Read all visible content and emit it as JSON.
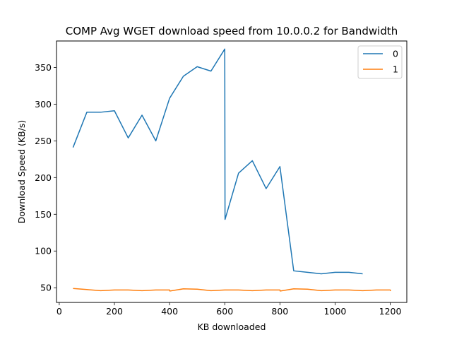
{
  "chart_data": {
    "type": "line",
    "title": "COMP Avg WGET download speed from 10.0.0.2 for Bandwidth",
    "xlabel": "KB downloaded",
    "ylabel": "Download Speed (KB/s)",
    "xlim": [
      -10,
      1260
    ],
    "ylim": [
      30,
      386
    ],
    "xticks": [
      0,
      200,
      400,
      600,
      800,
      1000,
      1200
    ],
    "yticks": [
      50,
      100,
      150,
      200,
      250,
      300,
      350
    ],
    "grid": false,
    "legend_position": "top-right",
    "series": [
      {
        "name": "0",
        "color": "#1f77b4",
        "points": [
          [
            50,
            241
          ],
          [
            100,
            289
          ],
          [
            150,
            289
          ],
          [
            200,
            291
          ],
          [
            250,
            254
          ],
          [
            300,
            285
          ],
          [
            350,
            250
          ],
          [
            400,
            308
          ],
          [
            450,
            338
          ],
          [
            500,
            351
          ],
          [
            550,
            345
          ],
          [
            600,
            375
          ],
          [
            601,
            143
          ],
          [
            650,
            206
          ],
          [
            700,
            223
          ],
          [
            750,
            185
          ],
          [
            800,
            215
          ],
          [
            850,
            73
          ],
          [
            900,
            71
          ],
          [
            950,
            69
          ],
          [
            1000,
            71
          ],
          [
            1050,
            71
          ],
          [
            1100,
            69
          ]
        ]
      },
      {
        "name": "1",
        "color": "#ff7f0e",
        "points": [
          [
            50,
            49
          ],
          [
            100,
            47.5
          ],
          [
            150,
            46
          ],
          [
            200,
            47
          ],
          [
            250,
            47
          ],
          [
            300,
            46
          ],
          [
            350,
            47
          ],
          [
            400,
            47
          ],
          [
            401,
            45.5
          ],
          [
            450,
            48.5
          ],
          [
            500,
            48
          ],
          [
            550,
            46
          ],
          [
            600,
            47
          ],
          [
            650,
            47
          ],
          [
            700,
            46
          ],
          [
            750,
            47
          ],
          [
            800,
            47
          ],
          [
            801,
            45.5
          ],
          [
            850,
            48.5
          ],
          [
            900,
            48
          ],
          [
            950,
            46
          ],
          [
            1000,
            47
          ],
          [
            1050,
            47
          ],
          [
            1100,
            46
          ],
          [
            1150,
            47
          ],
          [
            1200,
            47
          ],
          [
            1201,
            45.5
          ]
        ]
      }
    ]
  }
}
